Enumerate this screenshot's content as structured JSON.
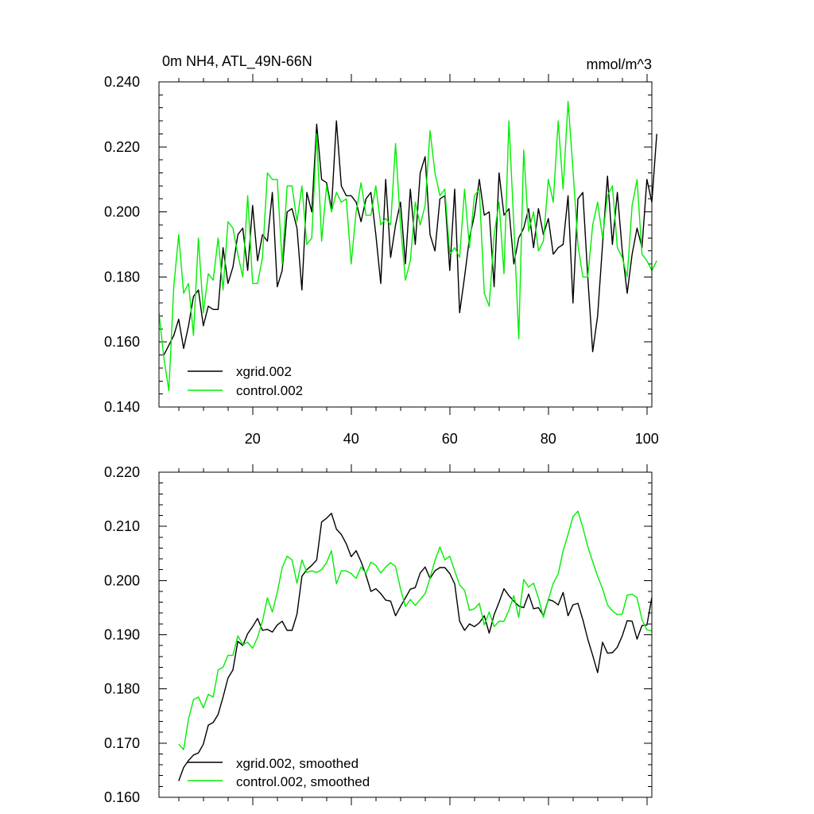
{
  "colors": {
    "series_black": "#000000",
    "series_green": "#00ee00",
    "axes": "#000000",
    "background": "#ffffff"
  },
  "chart_data": [
    {
      "type": "line",
      "title": "0m NH4, ATL_49N-66N",
      "units": "mmol/m^3",
      "xlim": [
        1,
        101
      ],
      "ylim": [
        0.14,
        0.24
      ],
      "x_major_ticks": [
        20,
        40,
        60,
        80,
        100
      ],
      "x_tick_labels": [
        "20",
        "40",
        "60",
        "80",
        "100"
      ],
      "y_major_ticks": [
        0.14,
        0.16,
        0.18,
        0.2,
        0.22,
        0.24
      ],
      "y_tick_labels": [
        "0.140",
        "0.160",
        "0.180",
        "0.200",
        "0.220",
        "0.240"
      ],
      "legend_position": "bottom-left",
      "series": [
        {
          "name": "xgrid.002",
          "color": "#000000",
          "x_start": 2,
          "values": [
            0.156,
            0.159,
            0.162,
            0.167,
            0.158,
            0.165,
            0.174,
            0.176,
            0.165,
            0.171,
            0.17,
            0.17,
            0.189,
            0.178,
            0.183,
            0.193,
            0.195,
            0.182,
            0.202,
            0.185,
            0.193,
            0.191,
            0.206,
            0.177,
            0.182,
            0.2,
            0.201,
            0.195,
            0.176,
            0.206,
            0.2,
            0.227,
            0.21,
            0.209,
            0.201,
            0.228,
            0.208,
            0.205,
            0.205,
            0.203,
            0.197,
            0.204,
            0.206,
            0.193,
            0.178,
            0.21,
            0.186,
            0.196,
            0.203,
            0.184,
            0.207,
            0.19,
            0.212,
            0.217,
            0.193,
            0.188,
            0.204,
            0.205,
            0.182,
            0.207,
            0.169,
            0.18,
            0.192,
            0.199,
            0.21,
            0.199,
            0.2,
            0.177,
            0.212,
            0.199,
            0.201,
            0.184,
            0.192,
            0.195,
            0.201,
            0.189,
            0.201,
            0.193,
            0.198,
            0.187,
            0.189,
            0.19,
            0.205,
            0.172,
            0.204,
            0.206,
            0.18,
            0.157,
            0.168,
            0.19,
            0.211,
            0.19,
            0.206,
            0.188,
            0.175,
            0.187,
            0.195,
            0.189,
            0.21,
            0.203,
            0.224
          ]
        },
        {
          "name": "control.002",
          "color": "#00ee00",
          "x_start": 1,
          "values": [
            0.169,
            0.155,
            0.145,
            0.177,
            0.193,
            0.175,
            0.178,
            0.162,
            0.192,
            0.169,
            0.181,
            0.179,
            0.192,
            0.176,
            0.197,
            0.195,
            0.187,
            0.18,
            0.205,
            0.178,
            0.178,
            0.186,
            0.212,
            0.21,
            0.21,
            0.184,
            0.208,
            0.208,
            0.197,
            0.208,
            0.19,
            0.192,
            0.224,
            0.191,
            0.208,
            0.2,
            0.206,
            0.203,
            0.204,
            0.184,
            0.2,
            0.209,
            0.199,
            0.199,
            0.208,
            0.196,
            0.198,
            0.196,
            0.221,
            0.196,
            0.179,
            0.185,
            0.203,
            0.196,
            0.202,
            0.225,
            0.212,
            0.205,
            0.207,
            0.187,
            0.189,
            0.186,
            0.207,
            0.189,
            0.205,
            0.207,
            0.175,
            0.171,
            0.193,
            0.203,
            0.181,
            0.228,
            0.196,
            0.161,
            0.219,
            0.194,
            0.2,
            0.188,
            0.191,
            0.21,
            0.203,
            0.228,
            0.207,
            0.234,
            0.213,
            0.19,
            0.18,
            0.18,
            0.196,
            0.203,
            0.192,
            0.205,
            0.208,
            0.189,
            0.186,
            0.18,
            0.202,
            0.21,
            0.187,
            0.185,
            0.182,
            0.185
          ]
        }
      ]
    },
    {
      "type": "line",
      "title": "",
      "xlim": [
        1,
        101
      ],
      "ylim": [
        0.16,
        0.22
      ],
      "x_major_ticks": [
        20,
        40,
        60,
        80,
        100
      ],
      "x_tick_labels": [],
      "y_major_ticks": [
        0.16,
        0.17,
        0.18,
        0.19,
        0.2,
        0.21,
        0.22
      ],
      "y_tick_labels": [
        "0.160",
        "0.170",
        "0.180",
        "0.190",
        "0.200",
        "0.210",
        "0.220"
      ],
      "legend_position": "bottom-left",
      "series": [
        {
          "name": "xgrid.002, smoothed",
          "color": "#000000",
          "x_start": 5,
          "values": [
            0.163,
            0.1655,
            0.1668,
            0.1678,
            0.1682,
            0.1698,
            0.1733,
            0.1738,
            0.1753,
            0.1785,
            0.182,
            0.1835,
            0.1888,
            0.188,
            0.1902,
            0.1915,
            0.193,
            0.1908,
            0.191,
            0.1905,
            0.1918,
            0.1925,
            0.1908,
            0.1908,
            0.1938,
            0.2008,
            0.202,
            0.2028,
            0.2038,
            0.2108,
            0.2115,
            0.2124,
            0.2095,
            0.2085,
            0.2068,
            0.2044,
            0.2055,
            0.2035,
            0.201,
            0.198,
            0.1985,
            0.1976,
            0.1964,
            0.1962,
            0.1935,
            0.1952,
            0.1968,
            0.1984,
            0.1987,
            0.2014,
            0.2025,
            0.2004,
            0.2018,
            0.2024,
            0.2024,
            0.2013,
            0.1994,
            0.1925,
            0.1908,
            0.192,
            0.1915,
            0.1922,
            0.1935,
            0.1903,
            0.1937,
            0.196,
            0.1985,
            0.1972,
            0.1962,
            0.1953,
            0.195,
            0.1975,
            0.1948,
            0.195,
            0.1935,
            0.1965,
            0.1962,
            0.1955,
            0.1978,
            0.1935,
            0.1955,
            0.1958,
            0.1928,
            0.1892,
            0.1862,
            0.183,
            0.1886,
            0.1866,
            0.1867,
            0.1877,
            0.1898,
            0.1926,
            0.1925,
            0.1892,
            0.1917,
            0.1918,
            0.1969
          ]
        },
        {
          "name": "control.002, smoothed",
          "color": "#00ee00",
          "x_start": 5,
          "values": [
            0.1698,
            0.1688,
            0.1745,
            0.178,
            0.1785,
            0.1765,
            0.179,
            0.1785,
            0.1835,
            0.184,
            0.1862,
            0.1862,
            0.1898,
            0.1882,
            0.1886,
            0.1875,
            0.1895,
            0.1925,
            0.1968,
            0.1942,
            0.1978,
            0.2024,
            0.2045,
            0.2038,
            0.1995,
            0.2038,
            0.2015,
            0.2018,
            0.2015,
            0.202,
            0.2033,
            0.2055,
            0.1994,
            0.2018,
            0.2018,
            0.2013,
            0.2004,
            0.2025,
            0.2013,
            0.2034,
            0.2028,
            0.2014,
            0.2025,
            0.2033,
            0.2026,
            0.1985,
            0.1952,
            0.1965,
            0.1954,
            0.1965,
            0.1976,
            0.2005,
            0.2037,
            0.2062,
            0.2038,
            0.2045,
            0.2018,
            0.1992,
            0.1982,
            0.1945,
            0.1948,
            0.1958,
            0.1918,
            0.1942,
            0.1915,
            0.1925,
            0.1925,
            0.1945,
            0.1972,
            0.1932,
            0.2002,
            0.1988,
            0.1995,
            0.1968,
            0.1932,
            0.1965,
            0.1995,
            0.2012,
            0.2055,
            0.2085,
            0.2118,
            0.2128,
            0.2098,
            0.2063,
            0.2035,
            0.2008,
            0.1985,
            0.1955,
            0.1944,
            0.1937,
            0.1938,
            0.1973,
            0.1975,
            0.1968,
            0.1928,
            0.1909,
            0.1907
          ]
        }
      ]
    }
  ]
}
